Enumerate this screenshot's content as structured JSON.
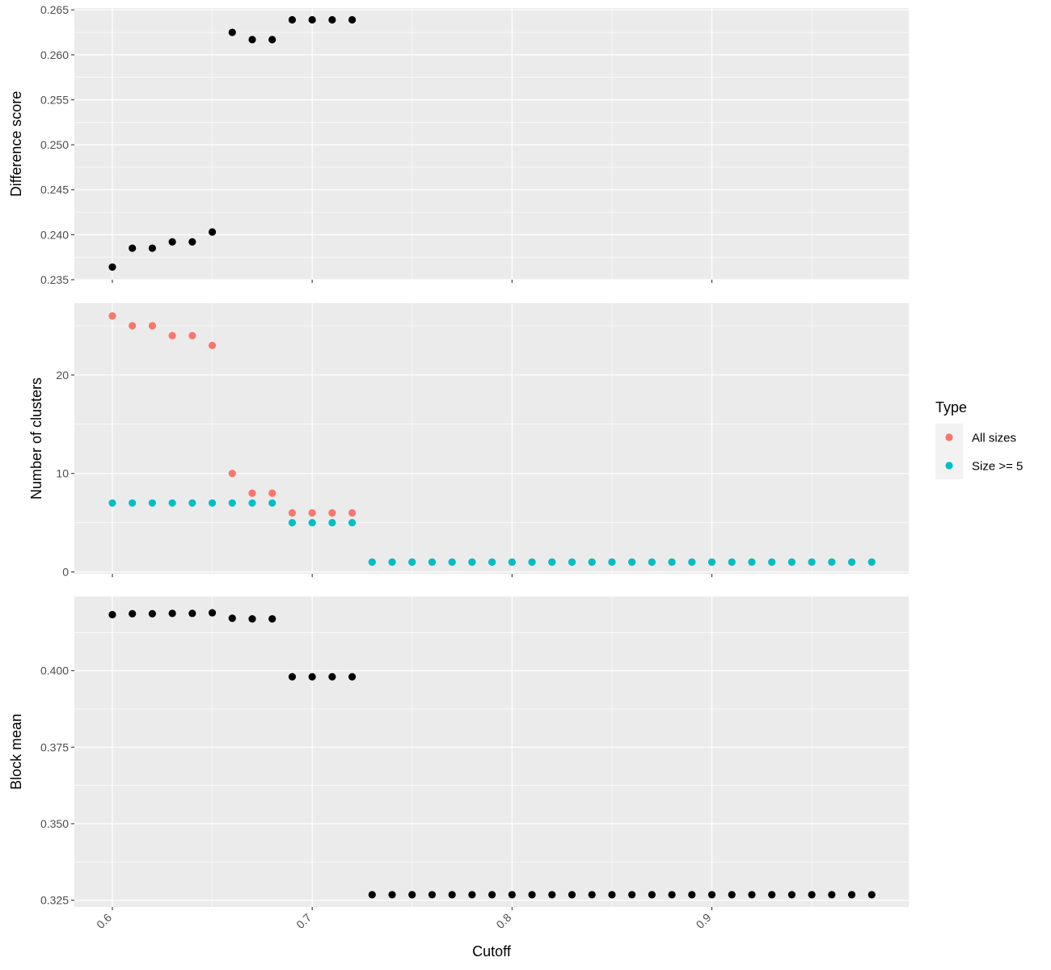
{
  "chart_data": [
    {
      "type": "scatter",
      "title": "",
      "xlabel": "",
      "ylabel": "Difference score",
      "xlim": [
        0.581,
        0.9985
      ],
      "ylim": [
        0.235,
        0.2652
      ],
      "yticks": [
        0.235,
        0.24,
        0.245,
        0.25,
        0.255,
        0.26,
        0.265
      ],
      "ytick_labels": [
        "0.235",
        "0.240",
        "0.245",
        "0.250",
        "0.255",
        "0.260",
        "0.265"
      ],
      "grid": true,
      "series": [
        {
          "color": "#000000",
          "x": [
            0.6,
            0.61,
            0.62,
            0.63,
            0.64,
            0.65,
            0.66,
            0.67,
            0.68,
            0.69,
            0.7,
            0.71,
            0.72
          ],
          "y": [
            0.2364,
            0.2385,
            0.2385,
            0.2392,
            0.2392,
            0.2403,
            0.2625,
            0.2617,
            0.2617,
            0.2639,
            0.2639,
            0.2639,
            0.2639
          ]
        }
      ]
    },
    {
      "type": "scatter",
      "title": "",
      "xlabel": "",
      "ylabel": "Number of clusters",
      "xlim": [
        0.581,
        0.9985
      ],
      "ylim": [
        -0.2,
        27.3
      ],
      "yticks": [
        0,
        10,
        20
      ],
      "ytick_labels": [
        "0",
        "10",
        "20"
      ],
      "grid": true,
      "legend": {
        "title": "Type",
        "position": "right",
        "entries": [
          {
            "label": "All sizes",
            "color": "#F8766D"
          },
          {
            "label": "Size >= 5",
            "color": "#00BFC4"
          }
        ]
      },
      "series": [
        {
          "name": "All sizes",
          "color": "#F8766D",
          "x": [
            0.6,
            0.61,
            0.62,
            0.63,
            0.64,
            0.65,
            0.66,
            0.67,
            0.68,
            0.69,
            0.7,
            0.71,
            0.72,
            0.73,
            0.74,
            0.75,
            0.76,
            0.77,
            0.78,
            0.79,
            0.8,
            0.81,
            0.82,
            0.83,
            0.84,
            0.85,
            0.86,
            0.87,
            0.88,
            0.89,
            0.9,
            0.91,
            0.92,
            0.93,
            0.94,
            0.95,
            0.96,
            0.97,
            0.98
          ],
          "y": [
            26,
            25,
            25,
            24,
            24,
            23,
            10,
            8,
            8,
            6,
            6,
            6,
            6,
            1,
            1,
            1,
            1,
            1,
            1,
            1,
            1,
            1,
            1,
            1,
            1,
            1,
            1,
            1,
            1,
            1,
            1,
            1,
            1,
            1,
            1,
            1,
            1,
            1,
            1
          ]
        },
        {
          "name": "Size >= 5",
          "color": "#00BFC4",
          "x": [
            0.6,
            0.61,
            0.62,
            0.63,
            0.64,
            0.65,
            0.66,
            0.67,
            0.68,
            0.69,
            0.7,
            0.71,
            0.72,
            0.73,
            0.74,
            0.75,
            0.76,
            0.77,
            0.78,
            0.79,
            0.8,
            0.81,
            0.82,
            0.83,
            0.84,
            0.85,
            0.86,
            0.87,
            0.88,
            0.89,
            0.9,
            0.91,
            0.92,
            0.93,
            0.94,
            0.95,
            0.96,
            0.97,
            0.98
          ],
          "y": [
            7,
            7,
            7,
            7,
            7,
            7,
            7,
            7,
            7,
            5,
            5,
            5,
            5,
            1,
            1,
            1,
            1,
            1,
            1,
            1,
            1,
            1,
            1,
            1,
            1,
            1,
            1,
            1,
            1,
            1,
            1,
            1,
            1,
            1,
            1,
            1,
            1,
            1,
            1
          ]
        }
      ]
    },
    {
      "type": "scatter",
      "title": "",
      "xlabel": "Cutoff",
      "ylabel": "Block mean",
      "xlim": [
        0.581,
        0.9985
      ],
      "ylim": [
        0.3228,
        0.4242
      ],
      "xticks": [
        0.6,
        0.7,
        0.8,
        0.9
      ],
      "xtick_labels": [
        "0.6",
        "0.7",
        "0.8",
        "0.9"
      ],
      "yticks": [
        0.325,
        0.35,
        0.375,
        0.4
      ],
      "ytick_labels": [
        "0.325",
        "0.350",
        "0.375",
        "0.400"
      ],
      "grid": true,
      "series": [
        {
          "color": "#000000",
          "x": [
            0.6,
            0.61,
            0.62,
            0.63,
            0.64,
            0.65,
            0.66,
            0.67,
            0.68,
            0.69,
            0.7,
            0.71,
            0.72,
            0.73,
            0.74,
            0.75,
            0.76,
            0.77,
            0.78,
            0.79,
            0.8,
            0.81,
            0.82,
            0.83,
            0.84,
            0.85,
            0.86,
            0.87,
            0.88,
            0.89,
            0.9,
            0.91,
            0.92,
            0.93,
            0.94,
            0.95,
            0.96,
            0.97,
            0.98
          ],
          "y": [
            0.4183,
            0.4186,
            0.4186,
            0.4187,
            0.4187,
            0.4189,
            0.4171,
            0.4169,
            0.4169,
            0.398,
            0.398,
            0.398,
            0.398,
            0.3268,
            0.3268,
            0.3268,
            0.3268,
            0.3268,
            0.3268,
            0.3268,
            0.3268,
            0.3268,
            0.3268,
            0.3268,
            0.3268,
            0.3268,
            0.3268,
            0.3268,
            0.3268,
            0.3268,
            0.3268,
            0.3268,
            0.3268,
            0.3268,
            0.3268,
            0.3268,
            0.3268,
            0.3268,
            0.3268
          ]
        }
      ]
    }
  ]
}
